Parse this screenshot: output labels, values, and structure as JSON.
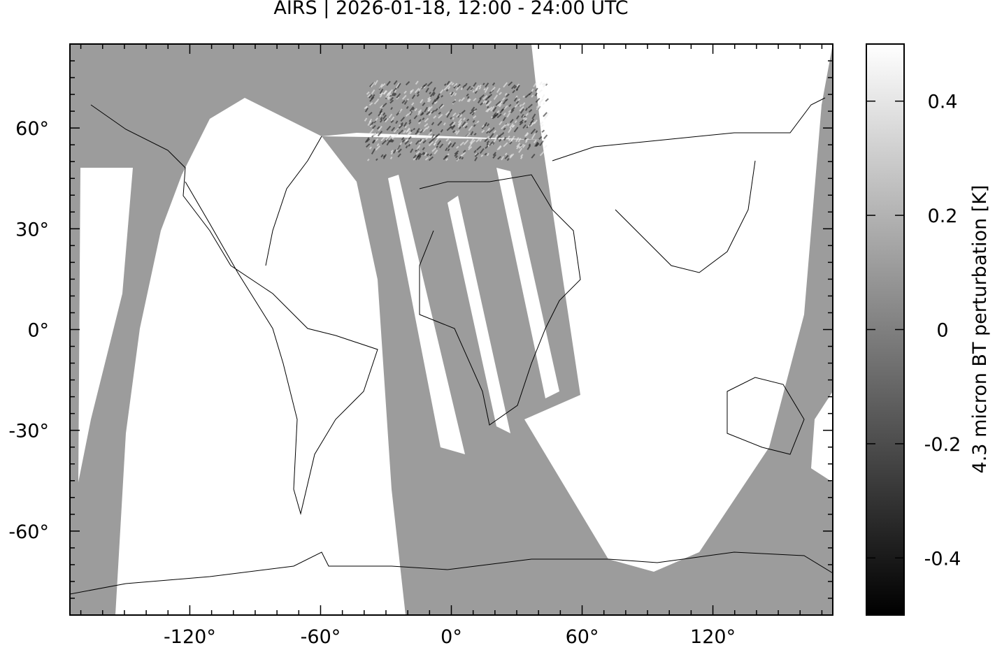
{
  "title": "AIRS | 2026-01-18, 12:00 - 24:00 UTC",
  "chart_data": {
    "type": "heatmap",
    "title": "AIRS | 2026-01-18, 12:00 - 24:00 UTC",
    "projection": "equirectangular",
    "xlabel": "",
    "ylabel": "",
    "xlim": [
      -175,
      175
    ],
    "ylim": [
      -85,
      85
    ],
    "x_ticks": [
      -120,
      -60,
      0,
      60,
      120
    ],
    "x_tick_labels": [
      "-120°",
      "-60°",
      "0°",
      "60°",
      "120°"
    ],
    "y_ticks": [
      60,
      30,
      0,
      -30,
      -60
    ],
    "y_tick_labels": [
      "60°",
      "30°",
      "0°",
      "-30°",
      "-60°"
    ],
    "colorbar": {
      "label": "4.3 micron BT perturbation [K]",
      "range": [
        -0.5,
        0.5
      ],
      "ticks": [
        0.4,
        0.2,
        0,
        -0.2,
        -0.4
      ],
      "tick_labels": [
        "0.4",
        "0.2",
        "0",
        "-0.2",
        "-0.4"
      ],
      "colormap": "grayscale",
      "low_color": "#000000",
      "high_color": "#ffffff"
    },
    "no_data_color": "#ffffff",
    "coastlines": true
  }
}
